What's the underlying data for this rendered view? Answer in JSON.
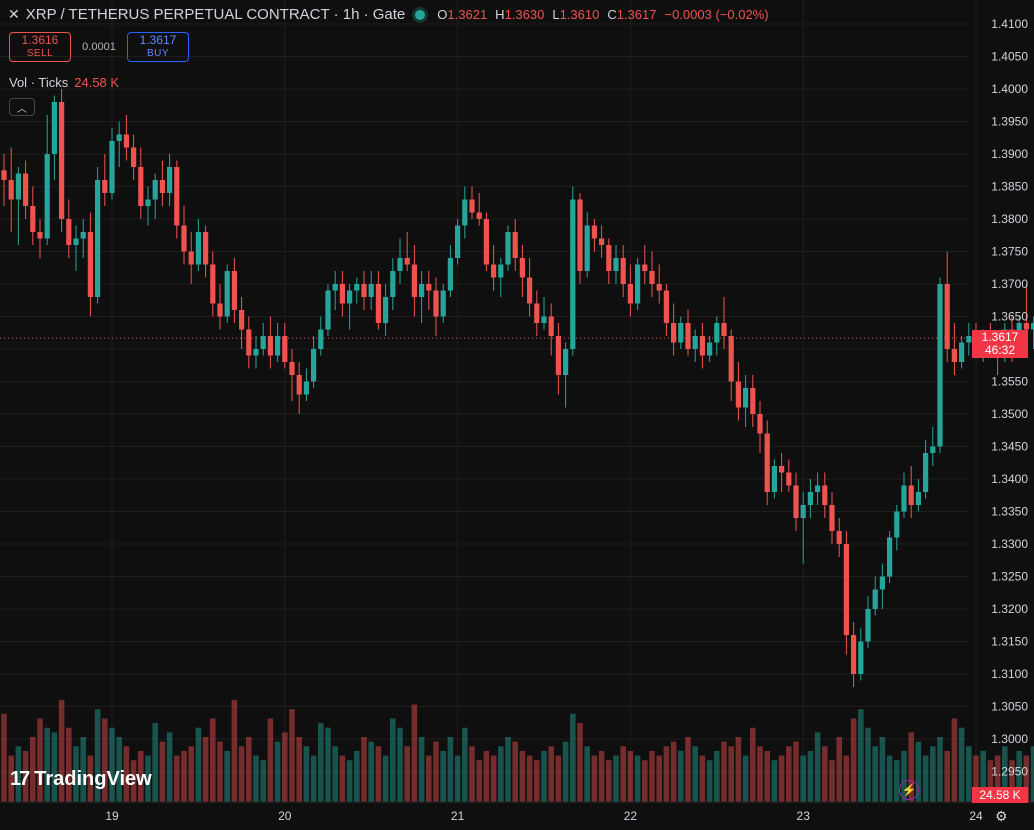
{
  "header": {
    "title": "XRP / TETHERUS PERPETUAL CONTRACT · 1h · Gate",
    "ohlc": {
      "o_label": "O",
      "o": "1.3621",
      "h_label": "H",
      "h": "1.3630",
      "l_label": "L",
      "l": "1.3610",
      "c_label": "C",
      "c": "1.3617",
      "change": "−0.0003 (−0.02%)"
    }
  },
  "trade": {
    "sell_price": "1.3616",
    "sell_label": "SELL",
    "spread": "0.0001",
    "buy_price": "1.3617",
    "buy_label": "BUY"
  },
  "volume_legend": {
    "label": "Vol · Ticks",
    "value": "24.58 K"
  },
  "price_tag": {
    "price": "1.3617",
    "countdown": "46:32"
  },
  "volume_tag": "24.58 K",
  "branding": "TradingView",
  "colors": {
    "up": "#26a69a",
    "down": "#ef5350",
    "background": "#0f0f0f",
    "grid": "#1e1e1e",
    "axis_text": "#d1d4dc"
  },
  "icons": [
    "close-icon",
    "status-dot-icon",
    "collapse-chevron-icon",
    "tradingview-logo-icon",
    "lightning-icon",
    "settings-icon"
  ],
  "chart_data": {
    "type": "candlestick",
    "interval": "1h",
    "y_ticks": [
      "1.4100",
      "1.4050",
      "1.4000",
      "1.3950",
      "1.3900",
      "1.3850",
      "1.3800",
      "1.3750",
      "1.3700",
      "1.3650",
      "1.3600",
      "1.3550",
      "1.3500",
      "1.3450",
      "1.3400",
      "1.3350",
      "1.3300",
      "1.3250",
      "1.3200",
      "1.3150",
      "1.3100",
      "1.3050",
      "1.3000",
      "1.2950"
    ],
    "ylim": [
      1.291,
      1.4125
    ],
    "x_ticks": [
      {
        "label": "19",
        "index": 15
      },
      {
        "label": "20",
        "index": 39
      },
      {
        "label": "21",
        "index": 63
      },
      {
        "label": "22",
        "index": 87
      },
      {
        "label": "23",
        "index": 111
      },
      {
        "label": "24",
        "index": 135
      }
    ],
    "last_price": 1.3617,
    "candles": [
      [
        1.3875,
        1.39,
        1.382,
        1.386
      ],
      [
        1.386,
        1.391,
        1.378,
        1.383
      ],
      [
        1.383,
        1.388,
        1.376,
        1.387
      ],
      [
        1.387,
        1.389,
        1.38,
        1.382
      ],
      [
        1.382,
        1.385,
        1.376,
        1.378
      ],
      [
        1.378,
        1.38,
        1.374,
        1.377
      ],
      [
        1.377,
        1.396,
        1.376,
        1.39
      ],
      [
        1.39,
        1.399,
        1.386,
        1.398
      ],
      [
        1.398,
        1.4,
        1.378,
        1.38
      ],
      [
        1.38,
        1.383,
        1.374,
        1.376
      ],
      [
        1.376,
        1.379,
        1.372,
        1.377
      ],
      [
        1.377,
        1.38,
        1.374,
        1.378
      ],
      [
        1.378,
        1.381,
        1.365,
        1.368
      ],
      [
        1.368,
        1.388,
        1.367,
        1.386
      ],
      [
        1.386,
        1.39,
        1.382,
        1.384
      ],
      [
        1.384,
        1.394,
        1.383,
        1.392
      ],
      [
        1.392,
        1.395,
        1.388,
        1.393
      ],
      [
        1.393,
        1.396,
        1.389,
        1.391
      ],
      [
        1.391,
        1.393,
        1.386,
        1.388
      ],
      [
        1.388,
        1.391,
        1.38,
        1.382
      ],
      [
        1.382,
        1.385,
        1.379,
        1.383
      ],
      [
        1.383,
        1.387,
        1.38,
        1.386
      ],
      [
        1.386,
        1.389,
        1.382,
        1.384
      ],
      [
        1.384,
        1.39,
        1.382,
        1.388
      ],
      [
        1.388,
        1.389,
        1.377,
        1.379
      ],
      [
        1.379,
        1.382,
        1.373,
        1.375
      ],
      [
        1.375,
        1.378,
        1.37,
        1.373
      ],
      [
        1.373,
        1.38,
        1.372,
        1.378
      ],
      [
        1.378,
        1.379,
        1.371,
        1.373
      ],
      [
        1.373,
        1.375,
        1.365,
        1.367
      ],
      [
        1.367,
        1.37,
        1.363,
        1.365
      ],
      [
        1.365,
        1.373,
        1.364,
        1.372
      ],
      [
        1.372,
        1.374,
        1.364,
        1.366
      ],
      [
        1.366,
        1.368,
        1.36,
        1.363
      ],
      [
        1.363,
        1.365,
        1.357,
        1.359
      ],
      [
        1.359,
        1.362,
        1.357,
        1.36
      ],
      [
        1.36,
        1.364,
        1.359,
        1.362
      ],
      [
        1.362,
        1.365,
        1.357,
        1.359
      ],
      [
        1.359,
        1.364,
        1.358,
        1.362
      ],
      [
        1.362,
        1.364,
        1.357,
        1.358
      ],
      [
        1.358,
        1.36,
        1.352,
        1.356
      ],
      [
        1.356,
        1.358,
        1.35,
        1.353
      ],
      [
        1.353,
        1.357,
        1.352,
        1.355
      ],
      [
        1.355,
        1.362,
        1.354,
        1.36
      ],
      [
        1.36,
        1.365,
        1.359,
        1.363
      ],
      [
        1.363,
        1.37,
        1.362,
        1.369
      ],
      [
        1.369,
        1.372,
        1.366,
        1.37
      ],
      [
        1.37,
        1.372,
        1.365,
        1.367
      ],
      [
        1.367,
        1.37,
        1.363,
        1.369
      ],
      [
        1.369,
        1.371,
        1.367,
        1.37
      ],
      [
        1.37,
        1.372,
        1.366,
        1.368
      ],
      [
        1.368,
        1.372,
        1.366,
        1.37
      ],
      [
        1.37,
        1.372,
        1.363,
        1.364
      ],
      [
        1.364,
        1.37,
        1.362,
        1.368
      ],
      [
        1.368,
        1.374,
        1.366,
        1.372
      ],
      [
        1.372,
        1.377,
        1.37,
        1.374
      ],
      [
        1.374,
        1.378,
        1.372,
        1.373
      ],
      [
        1.373,
        1.376,
        1.365,
        1.368
      ],
      [
        1.368,
        1.372,
        1.364,
        1.37
      ],
      [
        1.37,
        1.372,
        1.366,
        1.369
      ],
      [
        1.369,
        1.371,
        1.362,
        1.365
      ],
      [
        1.365,
        1.37,
        1.364,
        1.369
      ],
      [
        1.369,
        1.376,
        1.368,
        1.374
      ],
      [
        1.374,
        1.38,
        1.373,
        1.379
      ],
      [
        1.379,
        1.385,
        1.377,
        1.383
      ],
      [
        1.383,
        1.385,
        1.38,
        1.381
      ],
      [
        1.381,
        1.384,
        1.379,
        1.38
      ],
      [
        1.38,
        1.381,
        1.372,
        1.373
      ],
      [
        1.373,
        1.376,
        1.369,
        1.371
      ],
      [
        1.371,
        1.374,
        1.368,
        1.373
      ],
      [
        1.373,
        1.379,
        1.372,
        1.378
      ],
      [
        1.378,
        1.38,
        1.372,
        1.374
      ],
      [
        1.374,
        1.376,
        1.368,
        1.371
      ],
      [
        1.371,
        1.374,
        1.365,
        1.367
      ],
      [
        1.367,
        1.369,
        1.362,
        1.364
      ],
      [
        1.364,
        1.368,
        1.363,
        1.365
      ],
      [
        1.365,
        1.367,
        1.359,
        1.362
      ],
      [
        1.362,
        1.364,
        1.353,
        1.356
      ],
      [
        1.356,
        1.361,
        1.351,
        1.36
      ],
      [
        1.36,
        1.385,
        1.359,
        1.383
      ],
      [
        1.383,
        1.384,
        1.37,
        1.372
      ],
      [
        1.372,
        1.381,
        1.371,
        1.379
      ],
      [
        1.379,
        1.38,
        1.375,
        1.377
      ],
      [
        1.377,
        1.379,
        1.374,
        1.376
      ],
      [
        1.376,
        1.377,
        1.37,
        1.372
      ],
      [
        1.372,
        1.376,
        1.37,
        1.374
      ],
      [
        1.374,
        1.376,
        1.368,
        1.37
      ],
      [
        1.37,
        1.373,
        1.365,
        1.367
      ],
      [
        1.367,
        1.374,
        1.366,
        1.373
      ],
      [
        1.373,
        1.376,
        1.37,
        1.372
      ],
      [
        1.372,
        1.375,
        1.368,
        1.37
      ],
      [
        1.37,
        1.373,
        1.367,
        1.369
      ],
      [
        1.369,
        1.37,
        1.362,
        1.364
      ],
      [
        1.364,
        1.367,
        1.359,
        1.361
      ],
      [
        1.361,
        1.365,
        1.36,
        1.364
      ],
      [
        1.364,
        1.366,
        1.359,
        1.36
      ],
      [
        1.36,
        1.363,
        1.358,
        1.362
      ],
      [
        1.362,
        1.364,
        1.357,
        1.359
      ],
      [
        1.359,
        1.362,
        1.358,
        1.361
      ],
      [
        1.361,
        1.365,
        1.359,
        1.364
      ],
      [
        1.364,
        1.368,
        1.36,
        1.362
      ],
      [
        1.362,
        1.363,
        1.352,
        1.355
      ],
      [
        1.355,
        1.358,
        1.349,
        1.351
      ],
      [
        1.351,
        1.356,
        1.348,
        1.354
      ],
      [
        1.354,
        1.356,
        1.348,
        1.35
      ],
      [
        1.35,
        1.352,
        1.344,
        1.347
      ],
      [
        1.347,
        1.349,
        1.336,
        1.338
      ],
      [
        1.338,
        1.343,
        1.337,
        1.342
      ],
      [
        1.342,
        1.344,
        1.338,
        1.341
      ],
      [
        1.341,
        1.343,
        1.338,
        1.339
      ],
      [
        1.339,
        1.341,
        1.332,
        1.334
      ],
      [
        1.334,
        1.338,
        1.327,
        1.336
      ],
      [
        1.336,
        1.34,
        1.334,
        1.338
      ],
      [
        1.338,
        1.341,
        1.336,
        1.339
      ],
      [
        1.339,
        1.341,
        1.334,
        1.336
      ],
      [
        1.336,
        1.338,
        1.33,
        1.332
      ],
      [
        1.332,
        1.334,
        1.328,
        1.33
      ],
      [
        1.33,
        1.332,
        1.313,
        1.316
      ],
      [
        1.316,
        1.318,
        1.308,
        1.31
      ],
      [
        1.31,
        1.317,
        1.309,
        1.315
      ],
      [
        1.315,
        1.322,
        1.314,
        1.32
      ],
      [
        1.32,
        1.325,
        1.319,
        1.323
      ],
      [
        1.323,
        1.327,
        1.32,
        1.325
      ],
      [
        1.325,
        1.332,
        1.324,
        1.331
      ],
      [
        1.331,
        1.336,
        1.329,
        1.335
      ],
      [
        1.335,
        1.341,
        1.334,
        1.339
      ],
      [
        1.339,
        1.342,
        1.334,
        1.336
      ],
      [
        1.336,
        1.34,
        1.335,
        1.338
      ],
      [
        1.338,
        1.346,
        1.337,
        1.344
      ],
      [
        1.344,
        1.348,
        1.342,
        1.345
      ],
      [
        1.345,
        1.371,
        1.344,
        1.37
      ],
      [
        1.37,
        1.375,
        1.358,
        1.36
      ],
      [
        1.36,
        1.364,
        1.356,
        1.358
      ],
      [
        1.358,
        1.362,
        1.357,
        1.361
      ],
      [
        1.361,
        1.364,
        1.359,
        1.362
      ],
      [
        1.362,
        1.364,
        1.36,
        1.361
      ],
      [
        1.361,
        1.363,
        1.358,
        1.362
      ],
      [
        1.362,
        1.364,
        1.36,
        1.361
      ],
      [
        1.361,
        1.362,
        1.356,
        1.36
      ],
      [
        1.36,
        1.364,
        1.358,
        1.363
      ],
      [
        1.363,
        1.365,
        1.358,
        1.36
      ],
      [
        1.36,
        1.365,
        1.359,
        1.364
      ],
      [
        1.364,
        1.37,
        1.361,
        1.363
      ],
      [
        1.363,
        1.365,
        1.36,
        1.364
      ],
      [
        1.364,
        1.365,
        1.36,
        1.362
      ],
      [
        1.3621,
        1.363,
        1.361,
        1.3617
      ]
    ],
    "volumes": [
      19,
      10,
      12,
      11,
      14,
      18,
      16,
      15,
      22,
      16,
      12,
      14,
      10,
      20,
      18,
      16,
      14,
      12,
      9,
      11,
      10,
      17,
      13,
      15,
      10,
      11,
      12,
      16,
      14,
      18,
      13,
      11,
      22,
      12,
      14,
      10,
      9,
      18,
      13,
      15,
      20,
      14,
      12,
      10,
      17,
      16,
      12,
      10,
      9,
      11,
      14,
      13,
      12,
      10,
      18,
      16,
      12,
      21,
      14,
      10,
      13,
      11,
      14,
      10,
      16,
      12,
      9,
      11,
      10,
      12,
      14,
      13,
      11,
      10,
      9,
      11,
      12,
      10,
      13,
      19,
      17,
      12,
      10,
      11,
      9,
      10,
      12,
      11,
      10,
      9,
      11,
      10,
      12,
      13,
      11,
      14,
      12,
      10,
      9,
      11,
      13,
      12,
      14,
      10,
      16,
      12,
      11,
      9,
      10,
      12,
      13,
      10,
      11,
      15,
      12,
      9,
      14,
      10,
      18,
      20,
      16,
      12,
      14,
      10,
      9,
      11,
      15,
      13,
      10,
      12,
      14,
      11,
      18,
      16,
      12,
      10,
      11,
      9,
      10,
      12,
      9,
      11,
      10,
      12,
      9,
      10
    ]
  }
}
